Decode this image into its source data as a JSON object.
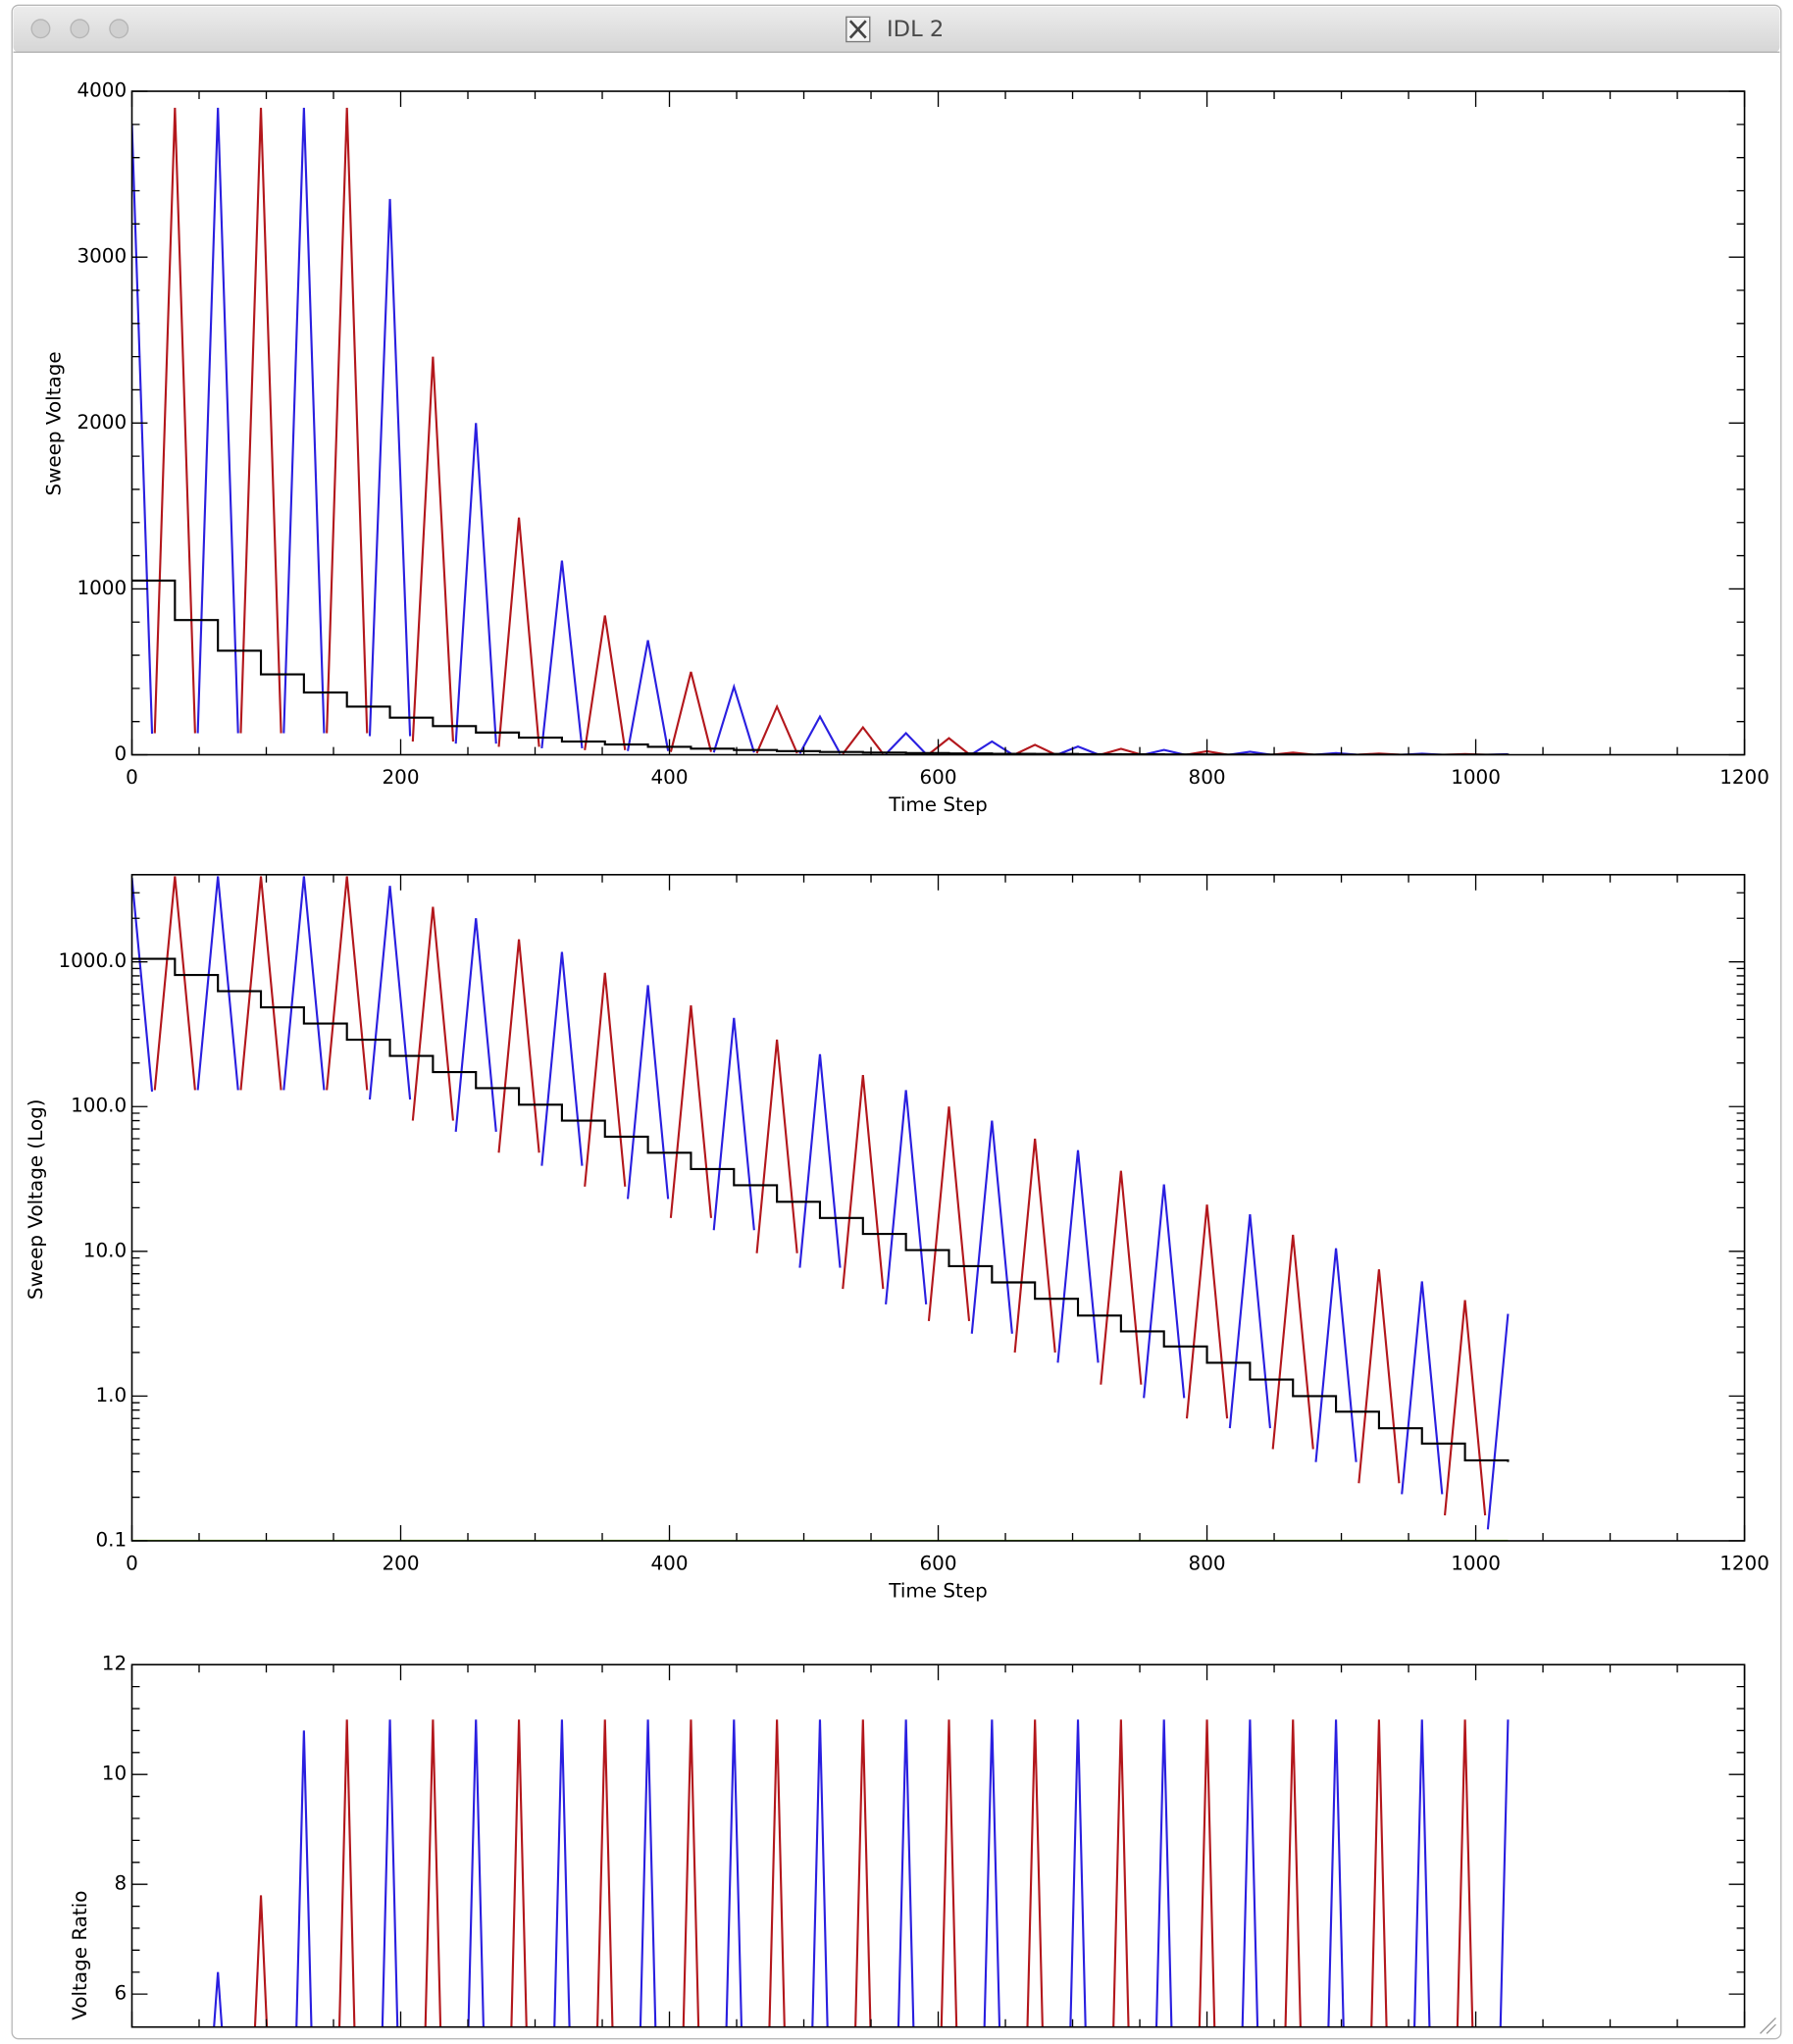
{
  "window": {
    "title": "IDL 2"
  },
  "chart_data": [
    {
      "type": "line",
      "y_label": "Sweep Voltage",
      "x_label": "Time Step",
      "xlim": [
        0,
        1200
      ],
      "xticks": [
        0,
        200,
        400,
        600,
        800,
        1000,
        1200
      ],
      "ylim": [
        0,
        4000
      ],
      "yticks": [
        0,
        1000,
        2000,
        3000,
        4000
      ],
      "log_y": false,
      "series": [
        {
          "color": "#2a1fe0",
          "x": [
            0,
            15,
            null,
            49,
            64,
            79,
            null,
            113,
            128,
            143,
            null,
            177,
            192,
            207,
            null,
            241,
            256,
            271,
            null,
            305,
            320,
            335,
            null,
            369,
            384,
            399,
            null,
            433,
            448,
            463,
            null,
            497,
            512,
            527,
            null,
            561,
            576,
            591,
            null,
            625,
            640,
            655,
            null,
            689,
            704,
            719,
            null,
            753,
            768,
            783,
            null,
            817,
            832,
            847,
            null,
            881,
            896,
            911,
            null,
            945,
            960,
            975,
            null,
            1009,
            1024
          ],
          "values": [
            3800,
            127,
            null,
            130,
            3900,
            130,
            null,
            130,
            3900,
            130,
            null,
            112,
            3350,
            112,
            null,
            67,
            2000,
            67,
            null,
            39,
            1170,
            39,
            null,
            23,
            690,
            23,
            null,
            14,
            410,
            14,
            null,
            7.7,
            230,
            7.7,
            null,
            4.3,
            130,
            4.3,
            null,
            2.7,
            80,
            2.7,
            null,
            1.7,
            50,
            1.7,
            null,
            0.97,
            29,
            0.97,
            null,
            0.6,
            18,
            0.6,
            null,
            0.35,
            10.5,
            0.35,
            null,
            0.21,
            6.2,
            0.21,
            null,
            0.12,
            3.7
          ]
        },
        {
          "color": "#b3171c",
          "x": [
            17,
            32,
            47,
            null,
            81,
            96,
            111,
            null,
            145,
            160,
            175,
            null,
            209,
            224,
            239,
            null,
            273,
            288,
            303,
            null,
            337,
            352,
            367,
            null,
            401,
            416,
            431,
            null,
            465,
            480,
            495,
            null,
            529,
            544,
            559,
            null,
            593,
            608,
            623,
            null,
            657,
            672,
            687,
            null,
            721,
            736,
            751,
            null,
            785,
            800,
            815,
            null,
            849,
            864,
            879,
            null,
            913,
            928,
            943,
            null,
            977,
            992,
            1007
          ],
          "values": [
            130,
            3900,
            130,
            null,
            130,
            3900,
            130,
            null,
            130,
            3900,
            130,
            null,
            80,
            2400,
            80,
            null,
            48,
            1430,
            48,
            null,
            28,
            840,
            28,
            null,
            17,
            500,
            17,
            null,
            9.7,
            290,
            9.7,
            null,
            5.5,
            165,
            5.5,
            null,
            3.3,
            100,
            3.3,
            null,
            2,
            60,
            2,
            null,
            1.2,
            36,
            1.2,
            null,
            0.7,
            21,
            0.7,
            null,
            0.43,
            13,
            0.43,
            null,
            0.25,
            7.5,
            0.25,
            null,
            0.15,
            4.6,
            0.15
          ]
        },
        {
          "color": "#000000",
          "step": true,
          "x": [
            0,
            32,
            64,
            96,
            128,
            160,
            192,
            224,
            256,
            288,
            320,
            352,
            384,
            416,
            448,
            480,
            512,
            544,
            576,
            608,
            640,
            672,
            704,
            736,
            768,
            800,
            832,
            864,
            896,
            928,
            960,
            992,
            1024
          ],
          "values": [
            1050,
            812,
            627,
            485,
            375,
            290,
            224,
            173,
            134,
            103,
            80,
            62,
            48,
            37,
            28.6,
            22,
            17,
            13.2,
            10.2,
            7.9,
            6.1,
            4.7,
            3.6,
            2.8,
            2.2,
            1.7,
            1.3,
            1.0,
            0.78,
            0.6,
            0.47,
            0.36,
            0.35
          ]
        }
      ]
    },
    {
      "type": "line",
      "y_label": "Sweep Voltage (Log)",
      "x_label": "Time Step",
      "xlim": [
        0,
        1200
      ],
      "xticks": [
        0,
        200,
        400,
        600,
        800,
        1000,
        1200
      ],
      "ylim": [
        0.1,
        4000
      ],
      "log_y": true,
      "yticks": [
        0.1,
        {
          "value": 1,
          "label": "1.0"
        },
        {
          "value": 10,
          "label": "10.0"
        },
        {
          "value": 100,
          "label": "100.0"
        },
        {
          "value": 1000,
          "label": "1000.0"
        }
      ],
      "series": [
        {
          "color": "#2a1fe0",
          "x": [
            0,
            15,
            null,
            49,
            64,
            79,
            null,
            113,
            128,
            143,
            null,
            177,
            192,
            207,
            null,
            241,
            256,
            271,
            null,
            305,
            320,
            335,
            null,
            369,
            384,
            399,
            null,
            433,
            448,
            463,
            null,
            497,
            512,
            527,
            null,
            561,
            576,
            591,
            null,
            625,
            640,
            655,
            null,
            689,
            704,
            719,
            null,
            753,
            768,
            783,
            null,
            817,
            832,
            847,
            null,
            881,
            896,
            911,
            null,
            945,
            960,
            975,
            null,
            1009,
            1024
          ],
          "values": [
            3800,
            127,
            null,
            130,
            3900,
            130,
            null,
            130,
            3900,
            130,
            null,
            112,
            3350,
            112,
            null,
            67,
            2000,
            67,
            null,
            39,
            1170,
            39,
            null,
            23,
            690,
            23,
            null,
            14,
            410,
            14,
            null,
            7.7,
            230,
            7.7,
            null,
            4.3,
            130,
            4.3,
            null,
            2.7,
            80,
            2.7,
            null,
            1.7,
            50,
            1.7,
            null,
            0.97,
            29,
            0.97,
            null,
            0.6,
            18,
            0.6,
            null,
            0.35,
            10.5,
            0.35,
            null,
            0.21,
            6.2,
            0.21,
            null,
            0.12,
            3.7
          ]
        },
        {
          "color": "#b3171c",
          "x": [
            17,
            32,
            47,
            null,
            81,
            96,
            111,
            null,
            145,
            160,
            175,
            null,
            209,
            224,
            239,
            null,
            273,
            288,
            303,
            null,
            337,
            352,
            367,
            null,
            401,
            416,
            431,
            null,
            465,
            480,
            495,
            null,
            529,
            544,
            559,
            null,
            593,
            608,
            623,
            null,
            657,
            672,
            687,
            null,
            721,
            736,
            751,
            null,
            785,
            800,
            815,
            null,
            849,
            864,
            879,
            null,
            913,
            928,
            943,
            null,
            977,
            992,
            1007
          ],
          "values": [
            130,
            3900,
            130,
            null,
            130,
            3900,
            130,
            null,
            130,
            3900,
            130,
            null,
            80,
            2400,
            80,
            null,
            48,
            1430,
            48,
            null,
            28,
            840,
            28,
            null,
            17,
            500,
            17,
            null,
            9.7,
            290,
            9.7,
            null,
            5.5,
            165,
            5.5,
            null,
            3.3,
            100,
            3.3,
            null,
            2,
            60,
            2,
            null,
            1.2,
            36,
            1.2,
            null,
            0.7,
            21,
            0.7,
            null,
            0.43,
            13,
            0.43,
            null,
            0.25,
            7.5,
            0.25,
            null,
            0.15,
            4.6,
            0.15
          ]
        },
        {
          "color": "#000000",
          "step": true,
          "x": [
            0,
            32,
            64,
            96,
            128,
            160,
            192,
            224,
            256,
            288,
            320,
            352,
            384,
            416,
            448,
            480,
            512,
            544,
            576,
            608,
            640,
            672,
            704,
            736,
            768,
            800,
            832,
            864,
            896,
            928,
            960,
            992,
            1024
          ],
          "values": [
            1050,
            812,
            627,
            485,
            375,
            290,
            224,
            173,
            134,
            103,
            80,
            62,
            48,
            37,
            28.6,
            22,
            17,
            13.2,
            10.2,
            7.9,
            6.1,
            4.7,
            3.6,
            2.8,
            2.2,
            1.7,
            1.3,
            1.0,
            0.78,
            0.6,
            0.47,
            0.36,
            0.35
          ]
        },
        {
          "color": "#8ee01a",
          "x": [
            0,
            1024
          ],
          "values": [
            0.1,
            0.1
          ]
        }
      ]
    },
    {
      "type": "line",
      "y_label": "Voltage Ratio",
      "xlim": [
        0,
        1200
      ],
      "xticks": [
        0,
        200,
        400,
        600,
        800,
        1000,
        1200
      ],
      "ylim": [
        5.4,
        12
      ],
      "yticks": [
        6,
        8,
        10,
        12
      ],
      "log_y": false,
      "series": [
        {
          "color": "#2a1fe0",
          "x": [
            57,
            64,
            71,
            null,
            121,
            128,
            135,
            null,
            185,
            192,
            199,
            null,
            249,
            256,
            263,
            null,
            313,
            320,
            327,
            null,
            377,
            384,
            391,
            null,
            441,
            448,
            455,
            null,
            505,
            512,
            519,
            null,
            569,
            576,
            583,
            null,
            633,
            640,
            647,
            null,
            697,
            704,
            711,
            null,
            761,
            768,
            775,
            null,
            825,
            832,
            839,
            null,
            889,
            896,
            903,
            null,
            953,
            960,
            967,
            null,
            1017,
            1024
          ],
          "values": [
            4,
            6.4,
            4,
            null,
            4,
            10.8,
            4,
            null,
            4,
            11,
            4,
            null,
            4,
            11,
            4,
            null,
            4,
            11,
            4,
            null,
            4,
            11,
            4,
            null,
            4,
            11,
            4,
            null,
            4,
            11,
            4,
            null,
            4,
            11,
            4,
            null,
            4,
            11,
            4,
            null,
            4,
            11,
            4,
            null,
            4,
            11,
            4,
            null,
            4,
            11,
            4,
            null,
            4,
            11,
            4,
            null,
            4,
            11,
            4,
            null,
            4,
            11
          ]
        },
        {
          "color": "#b3171c",
          "x": [
            89,
            96,
            103,
            null,
            153,
            160,
            167,
            null,
            217,
            224,
            231,
            null,
            281,
            288,
            295,
            null,
            345,
            352,
            359,
            null,
            409,
            416,
            423,
            null,
            473,
            480,
            487,
            null,
            537,
            544,
            551,
            null,
            601,
            608,
            615,
            null,
            665,
            672,
            679,
            null,
            729,
            736,
            743,
            null,
            793,
            800,
            807,
            null,
            857,
            864,
            871,
            null,
            921,
            928,
            935,
            null,
            985,
            992,
            999
          ],
          "values": [
            4,
            7.8,
            4,
            null,
            4,
            11,
            4,
            null,
            4,
            11,
            4,
            null,
            4,
            11,
            4,
            null,
            4,
            11,
            4,
            null,
            4,
            11,
            4,
            null,
            4,
            11,
            4,
            null,
            4,
            11,
            4,
            null,
            4,
            11,
            4,
            null,
            4,
            11,
            4,
            null,
            4,
            11,
            4,
            null,
            4,
            11,
            4,
            null,
            4,
            11,
            4,
            null,
            4,
            11,
            4,
            null,
            4,
            11,
            4
          ]
        }
      ]
    }
  ]
}
